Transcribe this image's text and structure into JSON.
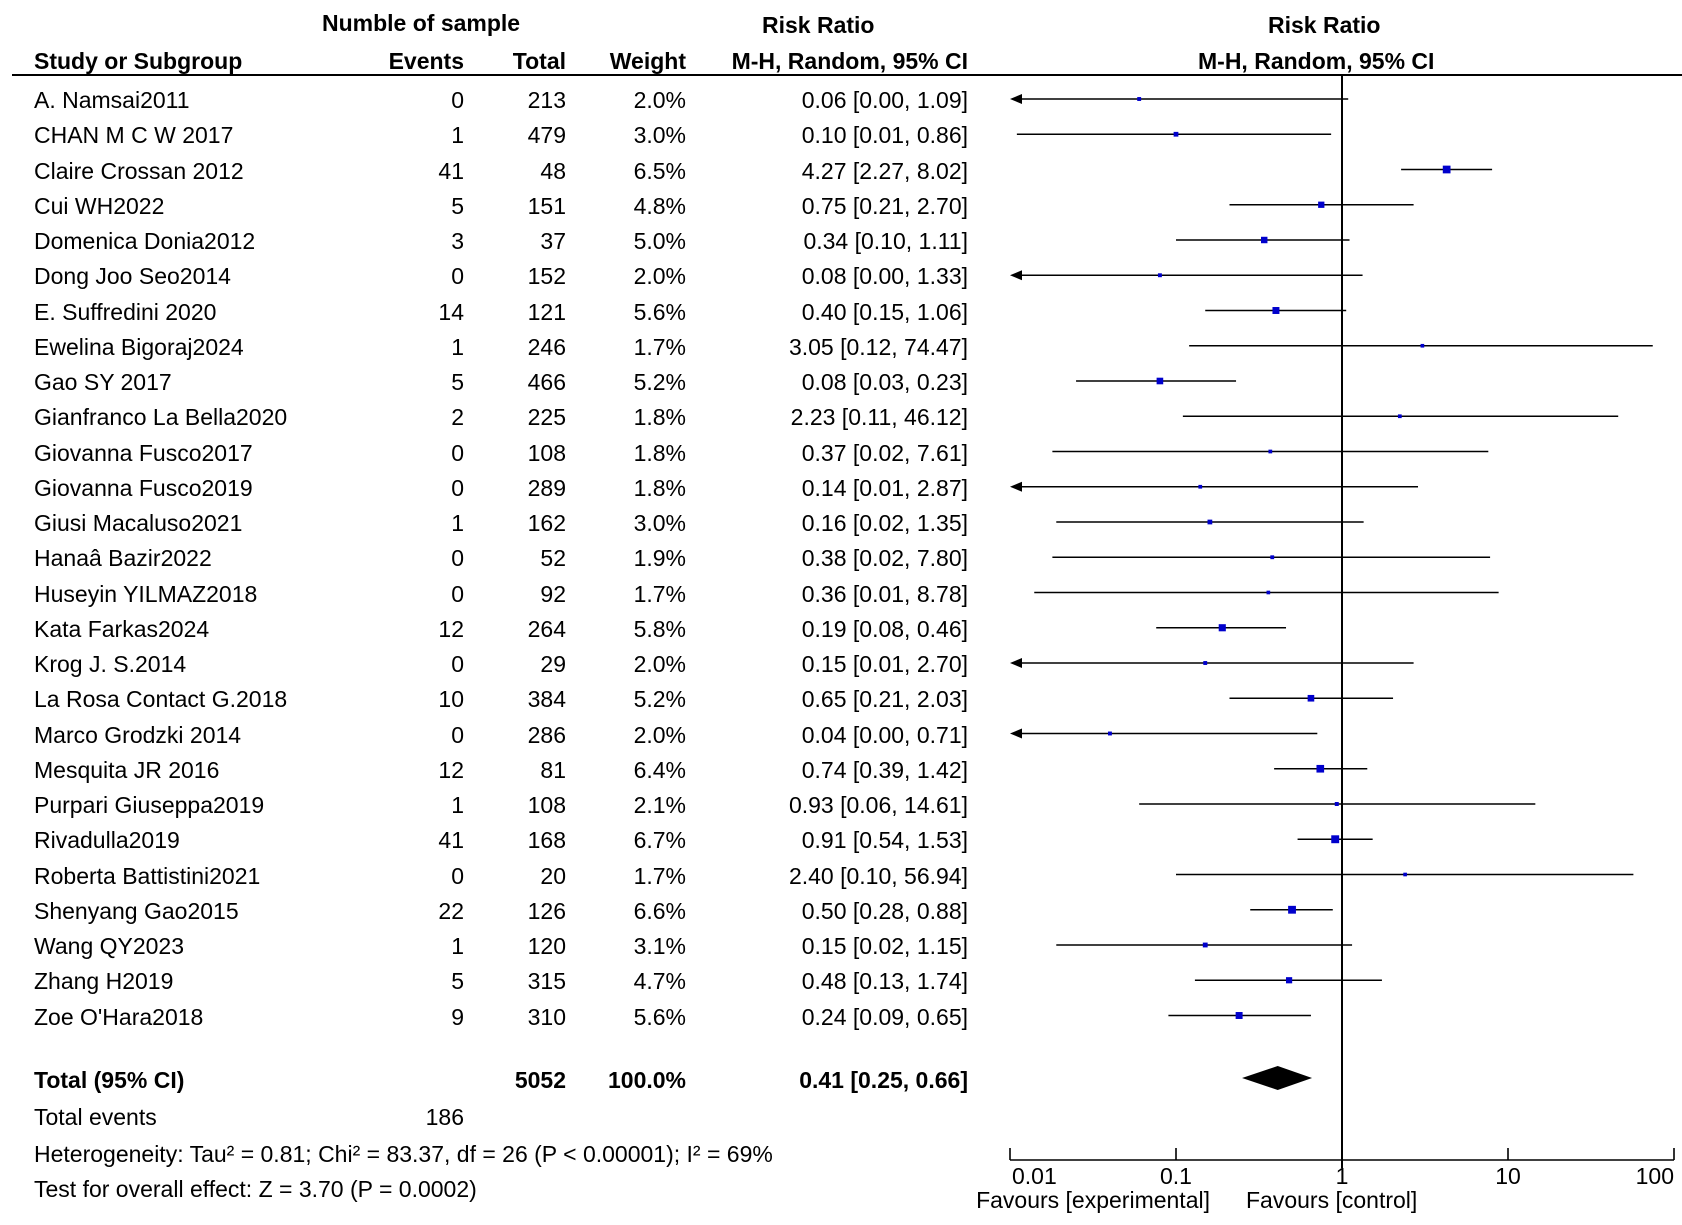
{
  "headers": {
    "sample_group": "Numble of sample",
    "left_risk_ratio": "Risk Ratio",
    "study": "Study or Subgroup",
    "events": "Events",
    "total": "Total",
    "weight": "Weight",
    "method": "M-H, Random, 95% CI",
    "right_risk_ratio": "Risk Ratio",
    "right_method": "M-H, Random, 95% CI"
  },
  "chart_data": {
    "type": "forest",
    "title": "Risk Ratio",
    "xlabel": "M-H, Random, 95% CI",
    "scale": "log",
    "xlim": [
      0.01,
      100
    ],
    "ticks": [
      "0.01",
      "0.1",
      "1",
      "10",
      "100"
    ],
    "tick_values": [
      0.01,
      0.1,
      1,
      10,
      100
    ],
    "favours_left": "Favours [experimental]",
    "favours_right": "Favours [control]",
    "studies": [
      {
        "name": "A. Namsai2011",
        "events": "0",
        "total": "213",
        "weight": "2.0%",
        "ci_text": "0.06 [0.00, 1.09]",
        "rr": 0.06,
        "lo": 0.0033,
        "hi": 1.09,
        "w": 2.0
      },
      {
        "name": "CHAN M C W  2017",
        "events": "1",
        "total": "479",
        "weight": "3.0%",
        "ci_text": "0.10 [0.01, 0.86]",
        "rr": 0.1,
        "lo": 0.011,
        "hi": 0.86,
        "w": 3.0
      },
      {
        "name": "Claire  Crossan 2012",
        "events": "41",
        "total": "48",
        "weight": "6.5%",
        "ci_text": "4.27 [2.27, 8.02]",
        "rr": 4.27,
        "lo": 2.27,
        "hi": 8.02,
        "w": 6.5
      },
      {
        "name": "Cui WH2022",
        "events": "5",
        "total": "151",
        "weight": "4.8%",
        "ci_text": "0.75 [0.21, 2.70]",
        "rr": 0.75,
        "lo": 0.21,
        "hi": 2.7,
        "w": 4.8
      },
      {
        "name": "Domenica Donia2012",
        "events": "3",
        "total": "37",
        "weight": "5.0%",
        "ci_text": "0.34 [0.10, 1.11]",
        "rr": 0.34,
        "lo": 0.1,
        "hi": 1.11,
        "w": 5.0
      },
      {
        "name": "Dong Joo Seo2014",
        "events": "0",
        "total": "152",
        "weight": "2.0%",
        "ci_text": "0.08 [0.00, 1.33]",
        "rr": 0.08,
        "lo": 0.0048,
        "hi": 1.33,
        "w": 2.0
      },
      {
        "name": "E. Suffredini  2020",
        "events": "14",
        "total": "121",
        "weight": "5.6%",
        "ci_text": "0.40 [0.15, 1.06]",
        "rr": 0.4,
        "lo": 0.15,
        "hi": 1.06,
        "w": 5.6
      },
      {
        "name": "Ewelina Bigoraj2024",
        "events": "1",
        "total": "246",
        "weight": "1.7%",
        "ci_text": "3.05 [0.12, 74.47]",
        "rr": 3.05,
        "lo": 0.12,
        "hi": 74.47,
        "w": 1.7
      },
      {
        "name": "Gao SY 2017",
        "events": "5",
        "total": "466",
        "weight": "5.2%",
        "ci_text": "0.08 [0.03, 0.23]",
        "rr": 0.08,
        "lo": 0.025,
        "hi": 0.23,
        "w": 5.2
      },
      {
        "name": "Gianfranco  La Bella2020",
        "events": "2",
        "total": "225",
        "weight": "1.8%",
        "ci_text": "2.23 [0.11, 46.12]",
        "rr": 2.23,
        "lo": 0.11,
        "hi": 46.12,
        "w": 1.8
      },
      {
        "name": "Giovanna Fusco2017",
        "events": "0",
        "total": "108",
        "weight": "1.8%",
        "ci_text": "0.37 [0.02, 7.61]",
        "rr": 0.37,
        "lo": 0.018,
        "hi": 7.61,
        "w": 1.8
      },
      {
        "name": "Giovanna Fusco2019",
        "events": "0",
        "total": "289",
        "weight": "1.8%",
        "ci_text": "0.14 [0.01, 2.87]",
        "rr": 0.14,
        "lo": 0.0068,
        "hi": 2.87,
        "w": 1.8
      },
      {
        "name": "Giusi  Macaluso2021",
        "events": "1",
        "total": "162",
        "weight": "3.0%",
        "ci_text": "0.16 [0.02, 1.35]",
        "rr": 0.16,
        "lo": 0.019,
        "hi": 1.35,
        "w": 3.0
      },
      {
        "name": "Hanaâ Bazir2022",
        "events": "0",
        "total": "52",
        "weight": "1.9%",
        "ci_text": "0.38 [0.02, 7.80]",
        "rr": 0.38,
        "lo": 0.018,
        "hi": 7.8,
        "w": 1.9
      },
      {
        "name": "Huseyin YILMAZ2018",
        "events": "0",
        "total": "92",
        "weight": "1.7%",
        "ci_text": "0.36 [0.01, 8.78]",
        "rr": 0.36,
        "lo": 0.014,
        "hi": 8.78,
        "w": 1.7
      },
      {
        "name": "Kata Farkas2024",
        "events": "12",
        "total": "264",
        "weight": "5.8%",
        "ci_text": "0.19 [0.08, 0.46]",
        "rr": 0.19,
        "lo": 0.076,
        "hi": 0.46,
        "w": 5.8
      },
      {
        "name": "Krog  J. S.2014",
        "events": "0",
        "total": "29",
        "weight": "2.0%",
        "ci_text": "0.15 [0.01, 2.70]",
        "rr": 0.15,
        "lo": 0.0085,
        "hi": 2.7,
        "w": 2.0
      },
      {
        "name": "La Rosa  Contact G.2018",
        "events": "10",
        "total": "384",
        "weight": "5.2%",
        "ci_text": "0.65 [0.21, 2.03]",
        "rr": 0.65,
        "lo": 0.21,
        "hi": 2.03,
        "w": 5.2
      },
      {
        "name": "Marco Grodzki 2014",
        "events": "0",
        "total": "286",
        "weight": "2.0%",
        "ci_text": "0.04 [0.00, 0.71]",
        "rr": 0.04,
        "lo": 0.0021,
        "hi": 0.71,
        "w": 2.0
      },
      {
        "name": "Mesquita JR 2016",
        "events": "12",
        "total": "81",
        "weight": "6.4%",
        "ci_text": "0.74 [0.39, 1.42]",
        "rr": 0.74,
        "lo": 0.39,
        "hi": 1.42,
        "w": 6.4
      },
      {
        "name": "Purpari  Giuseppa2019",
        "events": "1",
        "total": "108",
        "weight": "2.1%",
        "ci_text": "0.93 [0.06, 14.61]",
        "rr": 0.93,
        "lo": 0.06,
        "hi": 14.61,
        "w": 2.1
      },
      {
        "name": "Rivadulla2019",
        "events": "41",
        "total": "168",
        "weight": "6.7%",
        "ci_text": "0.91 [0.54, 1.53]",
        "rr": 0.91,
        "lo": 0.54,
        "hi": 1.53,
        "w": 6.7
      },
      {
        "name": "Roberta Battistini2021",
        "events": "0",
        "total": "20",
        "weight": "1.7%",
        "ci_text": "2.40 [0.10, 56.94]",
        "rr": 2.4,
        "lo": 0.1,
        "hi": 56.94,
        "w": 1.7
      },
      {
        "name": "Shenyang Gao2015",
        "events": "22",
        "total": "126",
        "weight": "6.6%",
        "ci_text": "0.50 [0.28, 0.88]",
        "rr": 0.5,
        "lo": 0.28,
        "hi": 0.88,
        "w": 6.6
      },
      {
        "name": "Wang QY2023",
        "events": "1",
        "total": "120",
        "weight": "3.1%",
        "ci_text": "0.15 [0.02, 1.15]",
        "rr": 0.15,
        "lo": 0.019,
        "hi": 1.15,
        "w": 3.1
      },
      {
        "name": "Zhang H2019",
        "events": "5",
        "total": "315",
        "weight": "4.7%",
        "ci_text": "0.48 [0.13, 1.74]",
        "rr": 0.48,
        "lo": 0.13,
        "hi": 1.74,
        "w": 4.7
      },
      {
        "name": "Zoe O'Hara2018",
        "events": "9",
        "total": "310",
        "weight": "5.6%",
        "ci_text": "0.24 [0.09, 0.65]",
        "rr": 0.24,
        "lo": 0.09,
        "hi": 0.65,
        "w": 5.6
      }
    ],
    "pooled": {
      "rr": 0.41,
      "lo": 0.25,
      "hi": 0.66
    }
  },
  "total": {
    "label": "Total (95% CI)",
    "total": "5052",
    "weight": "100.0%",
    "ci_text": "0.41 [0.25, 0.66]",
    "events_label": "Total events",
    "events": "186"
  },
  "footer": {
    "heterogeneity": "Heterogeneity: Tau² = 0.81; Chi² = 83.37, df = 26 (P < 0.00001); I² = 69%",
    "overall_effect": "Test for overall effect: Z = 3.70 (P = 0.0002)"
  },
  "colors": {
    "marker": "#0000cc",
    "line": "#000000",
    "diamond": "#000000"
  }
}
